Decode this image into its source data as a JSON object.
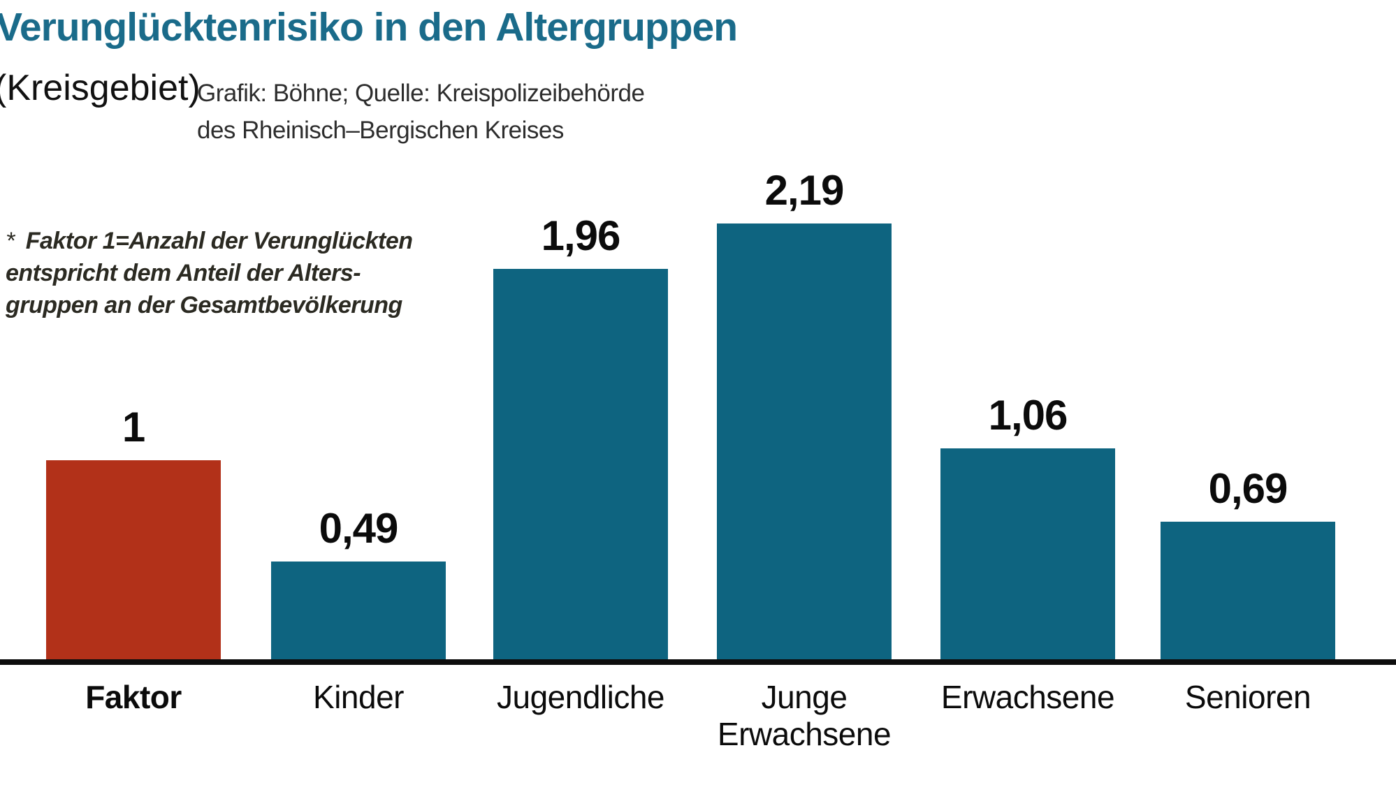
{
  "header": {
    "title": "Verunglücktenrisiko in den Altergruppen",
    "subtitle": "(Kreisgebiet)",
    "credit_line1": "Grafik: Böhne; Quelle: Kreispolizeibehörde",
    "credit_line2": "des Rheinisch–Bergischen Kreises"
  },
  "footnote": {
    "marker": "*",
    "line1": "Faktor 1=Anzahl der Verunglückten",
    "line2": "entspricht dem Anteil der Alters-",
    "line3": "gruppen an der Gesamtbevölkerung"
  },
  "colors": {
    "title": "#1a6b8a",
    "bar_teal": "#0e6480",
    "bar_red": "#b23119",
    "axis": "#0d0d0d",
    "text": "#0b0b0b",
    "footnote_text": "#2b2a22"
  },
  "chart_data": {
    "type": "bar",
    "categories": [
      "Faktor",
      "Kinder",
      "Jugendliche",
      "Junge Erwachsene",
      "Erwachsene",
      "Senioren"
    ],
    "values": [
      1,
      0.49,
      1.96,
      2.19,
      1.06,
      0.69
    ],
    "value_labels": [
      "1",
      "0,49",
      "1,96",
      "2,19",
      "1,06",
      "0,69"
    ],
    "bar_colors": [
      "#b23119",
      "#0e6480",
      "#0e6480",
      "#0e6480",
      "#0e6480",
      "#0e6480"
    ],
    "highlighted_category": "Faktor",
    "title": "Verunglücktenrisiko in den Altergruppen (Kreisgebiet)",
    "xlabel": "",
    "ylabel": "",
    "ylim": [
      0,
      2.4
    ],
    "grid": false,
    "legend": null,
    "value_label_position": "above-bars",
    "baseline_axis": "x"
  }
}
